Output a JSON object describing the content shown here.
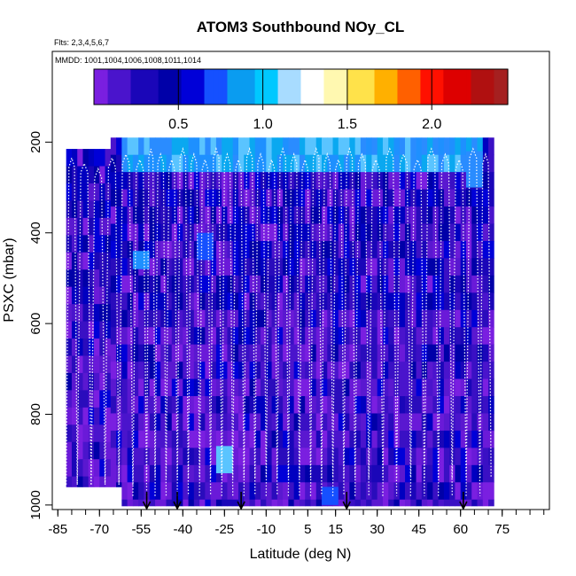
{
  "chart_data": {
    "type": "heatmap",
    "title": "ATOM3 Southbound NOy_CL",
    "flights_label": "Flts: 2,3,4,5,6,7",
    "dates_label": "MMDD: 1001,1004,1006,1008,1011,1014",
    "xlabel": "Latitude (deg N)",
    "ylabel": "PSXC (mbar)",
    "xlim": [
      -87,
      92
    ],
    "ylim": [
      1010,
      0
    ],
    "x_ticks": [
      -85,
      -70,
      -55,
      -40,
      -25,
      -10,
      5,
      15,
      30,
      45,
      60,
      75
    ],
    "x_tick_labels": [
      "-85",
      "-70",
      "-55",
      "-40",
      "-25",
      "-10",
      "5",
      "15",
      "30",
      "45",
      "60",
      "75"
    ],
    "y_ticks": [
      200,
      400,
      600,
      800,
      1000
    ],
    "y_tick_labels": [
      "200",
      "400",
      "600",
      "800",
      "1000"
    ],
    "colorbar": {
      "range": [
        0,
        2.45
      ],
      "ticks": [
        0.5,
        1.0,
        1.5,
        2.0
      ],
      "tick_labels": [
        "0.5",
        "1.0",
        "1.5",
        "2.0"
      ],
      "colors": [
        "#7a1fe0",
        "#4a14cc",
        "#1a06b8",
        "#0000a8",
        "#0000d8",
        "#1550ff",
        "#0a9cf0",
        "#00c8ff",
        "#a8dcff",
        "#ffffff",
        "#fff8b0",
        "#ffe24a",
        "#ffb000",
        "#ff6000",
        "#ff1000",
        "#dd0000",
        "#b01010",
        "#a52020"
      ]
    },
    "arrow_latitudes": [
      -53,
      -42,
      -19,
      19,
      61
    ],
    "profile_path_latitudes": [
      -82,
      -78,
      -73,
      -68,
      -63,
      -58,
      -53,
      -50,
      -46,
      -42,
      -38,
      -34,
      -30,
      -26,
      -22,
      -18,
      -14,
      -10,
      -6,
      -2,
      2,
      6,
      10,
      14,
      18,
      22,
      27,
      32,
      37,
      42,
      47,
      52,
      57,
      62,
      67,
      71
    ]
  }
}
